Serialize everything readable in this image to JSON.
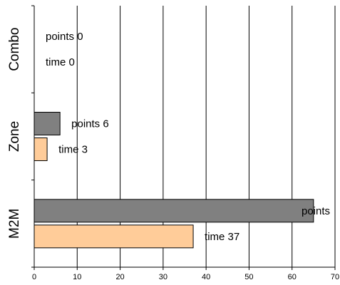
{
  "chart_data": {
    "type": "bar",
    "orientation": "horizontal",
    "categories": [
      "Combo",
      "Zone",
      "M2M"
    ],
    "series": [
      {
        "values": [
          0,
          6,
          65
        ],
        "color": "#808080",
        "label_prefix": "points"
      },
      {
        "values": [
          0,
          3,
          37
        ],
        "color": "#ffcc99",
        "label_prefix": "time"
      }
    ],
    "data_labels": [
      [
        "points 0",
        "time 0"
      ],
      [
        "points 6",
        "time 3"
      ],
      [
        "points",
        "time 37"
      ]
    ],
    "xlim": [
      0,
      70
    ],
    "x_ticks": [
      "0",
      "10",
      "20",
      "30",
      "40",
      "50",
      "60",
      "70"
    ],
    "grid": "vertical",
    "legend": "none",
    "title": "",
    "xlabel": "",
    "ylabel": ""
  }
}
